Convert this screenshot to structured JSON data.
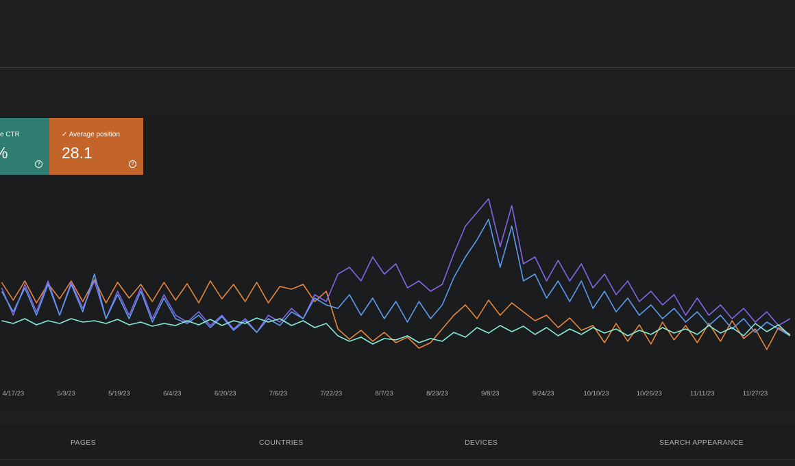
{
  "cards": [
    {
      "label": "e CTR",
      "value": "%"
    },
    {
      "label": "Average position",
      "value": "28.1"
    }
  ],
  "tabs": [
    "PAGES",
    "COUNTRIES",
    "DEVICES",
    "SEARCH APPEARANCE"
  ],
  "chart_data": {
    "type": "line",
    "x": [
      -3.5,
      0,
      3.5,
      7,
      10.5,
      14,
      17.5,
      21,
      24.5,
      28,
      31.5,
      35,
      38.5,
      42,
      45.5,
      49,
      52.5,
      56,
      59.5,
      63,
      66.5,
      70,
      73.5,
      77,
      80.5,
      84,
      87.5,
      91,
      94.5,
      98,
      101.5,
      105,
      108.5,
      112,
      115.5,
      119,
      122.5,
      126,
      129.5,
      133,
      136.5,
      140,
      143.5,
      147,
      150.5,
      154,
      157.5,
      161,
      164.5,
      168,
      171.5,
      175,
      178.5,
      182,
      185.5,
      189,
      192.5,
      196,
      199.5,
      203,
      206.5,
      210,
      213.5,
      217,
      220.5,
      224,
      227.5,
      231,
      234.5
    ],
    "xlim": [
      -4,
      236
    ],
    "xticks": [
      {
        "value": 0,
        "label": "4/17/23"
      },
      {
        "value": 16,
        "label": "5/3/23"
      },
      {
        "value": 32,
        "label": "5/19/23"
      },
      {
        "value": 48,
        "label": "6/4/23"
      },
      {
        "value": 64,
        "label": "6/20/23"
      },
      {
        "value": 80,
        "label": "7/6/23"
      },
      {
        "value": 96,
        "label": "7/22/23"
      },
      {
        "value": 112,
        "label": "8/7/23"
      },
      {
        "value": 128,
        "label": "8/23/23"
      },
      {
        "value": 144,
        "label": "9/8/23"
      },
      {
        "value": 160,
        "label": "9/24/23"
      },
      {
        "value": 176,
        "label": "10/10/23"
      },
      {
        "value": 192,
        "label": "10/26/23"
      },
      {
        "value": 208,
        "label": "11/11/23"
      },
      {
        "value": 224,
        "label": "11/27/23"
      }
    ],
    "ylim": [
      0,
      290
    ],
    "series": [
      {
        "color": "#e8863c",
        "values": [
          148,
          122,
          150,
          118,
          146,
          124,
          150,
          120,
          152,
          118,
          148,
          125,
          145,
          120,
          148,
          122,
          146,
          118,
          150,
          124,
          145,
          120,
          148,
          118,
          142,
          138,
          145,
          120,
          135,
          80,
          65,
          78,
          62,
          75,
          60,
          68,
          52,
          60,
          80,
          100,
          115,
          95,
          122,
          100,
          118,
          105,
          92,
          100,
          82,
          96,
          78,
          85,
          60,
          88,
          62,
          86,
          58,
          90,
          64,
          85,
          60,
          88,
          62,
          92,
          66,
          80,
          50,
          82,
          72
        ]
      },
      {
        "color": "#8466e6",
        "values": [
          140,
          100,
          145,
          105,
          150,
          100,
          148,
          110,
          150,
          95,
          135,
          100,
          140,
          95,
          130,
          100,
          90,
          105,
          85,
          100,
          80,
          95,
          75,
          100,
          90,
          110,
          95,
          130,
          120,
          160,
          170,
          150,
          185,
          160,
          175,
          140,
          150,
          135,
          145,
          190,
          230,
          250,
          270,
          200,
          260,
          175,
          185,
          150,
          180,
          150,
          175,
          140,
          160,
          130,
          150,
          120,
          135,
          115,
          130,
          100,
          125,
          100,
          115,
          95,
          110,
          90,
          105,
          85,
          95
        ]
      },
      {
        "color": "#5c9cf0",
        "values": [
          135,
          105,
          140,
          100,
          145,
          100,
          145,
          105,
          160,
          95,
          130,
          95,
          135,
          90,
          125,
          95,
          88,
          100,
          82,
          98,
          78,
          92,
          75,
          95,
          85,
          105,
          95,
          125,
          115,
          110,
          130,
          100,
          125,
          95,
          120,
          90,
          120,
          95,
          115,
          155,
          185,
          210,
          240,
          170,
          230,
          150,
          160,
          125,
          150,
          120,
          150,
          110,
          135,
          105,
          125,
          100,
          115,
          95,
          110,
          90,
          105,
          85,
          100,
          80,
          95,
          75,
          90,
          80,
          70
        ]
      },
      {
        "color": "#86ecd8",
        "values": [
          92,
          88,
          95,
          86,
          92,
          88,
          95,
          90,
          92,
          88,
          94,
          86,
          90,
          84,
          88,
          85,
          92,
          86,
          94,
          85,
          92,
          88,
          96,
          90,
          95,
          85,
          92,
          82,
          88,
          70,
          62,
          68,
          58,
          66,
          64,
          70,
          60,
          66,
          62,
          75,
          68,
          82,
          74,
          85,
          76,
          84,
          72,
          82,
          70,
          80,
          72,
          82,
          74,
          80,
          70,
          78,
          72,
          82,
          74,
          80,
          72,
          85,
          74,
          82,
          70,
          88,
          76,
          86,
          70
        ]
      }
    ]
  }
}
